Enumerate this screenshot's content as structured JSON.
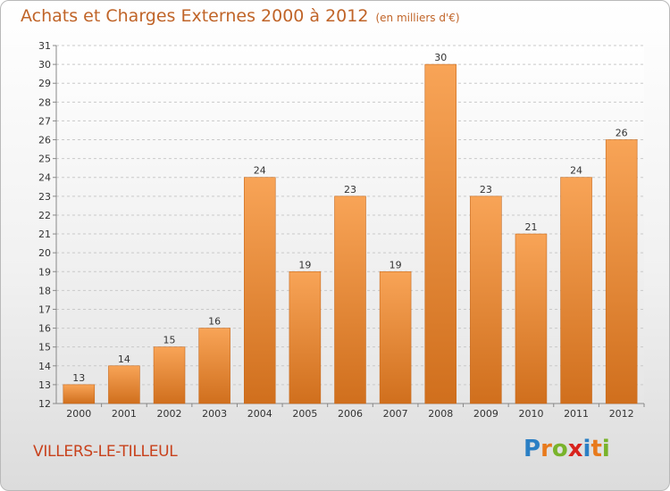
{
  "header": {
    "title": "Achats et Charges Externes 2000 à 2012",
    "subtitle": "(en milliers d'€)"
  },
  "footer": {
    "place": "VILLERS-LE-TILLEUL",
    "logo": [
      "P",
      "r",
      "o",
      "x",
      "i",
      "t",
      "i"
    ],
    "logo_colors": [
      "#2b7fc4",
      "#e87a1c",
      "#79b32b",
      "#d8231d",
      "#2b7fc4",
      "#e87a1c",
      "#79b32b"
    ]
  },
  "chart_data": {
    "type": "bar",
    "categories": [
      "2000",
      "2001",
      "2002",
      "2003",
      "2004",
      "2005",
      "2006",
      "2007",
      "2008",
      "2009",
      "2010",
      "2011",
      "2012"
    ],
    "values": [
      13,
      14,
      15,
      16,
      24,
      19,
      23,
      19,
      30,
      23,
      21,
      24,
      26
    ],
    "title": "Achats et Charges Externes 2000 à 2012",
    "subtitle": "(en milliers d'€)",
    "xlabel": "",
    "ylabel": "",
    "ylim": [
      12,
      31
    ],
    "yticks": [
      12,
      13,
      14,
      15,
      16,
      17,
      18,
      19,
      20,
      21,
      22,
      23,
      24,
      25,
      26,
      27,
      28,
      29,
      30,
      31
    ],
    "grid": true,
    "bar_color": "#f0913a"
  }
}
